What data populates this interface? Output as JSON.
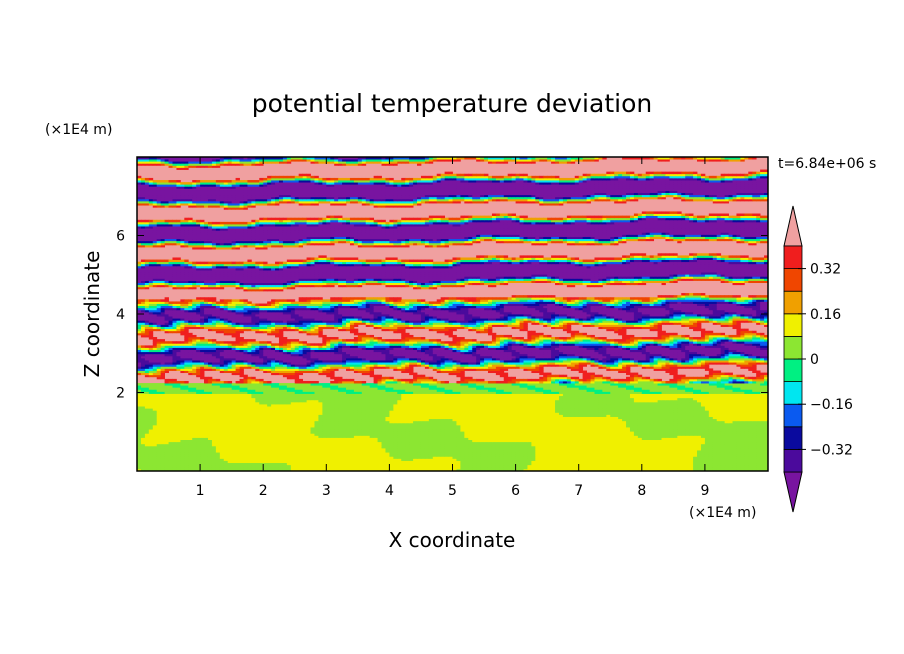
{
  "chart_data": {
    "type": "heatmap",
    "title": "potential temperature deviation",
    "xlabel": "X coordinate",
    "ylabel": "Z coordinate",
    "x_unit": "(×1E4 m)",
    "y_unit": "(×1E4 m)",
    "time_label": "t=6.84e+06 s",
    "xlim": [
      0,
      10
    ],
    "ylim": [
      0,
      8
    ],
    "x_ticks": [
      1,
      2,
      3,
      4,
      5,
      6,
      7,
      8,
      9
    ],
    "y_ticks": [
      2,
      4,
      6
    ],
    "grid": false,
    "legend": "right",
    "colorbar": {
      "levels": [
        -0.4,
        -0.32,
        -0.24,
        -0.16,
        -0.08,
        0,
        0.08,
        0.16,
        0.24,
        0.32,
        0.4
      ],
      "tick_values": [
        0.32,
        0.16,
        0,
        -0.16,
        -0.32
      ],
      "tick_labels": [
        "0.32",
        "0.16",
        "0",
        "−0.16",
        "−0.32"
      ],
      "colors_bottom_to_top": [
        "#4b0a9c",
        "#0a0a9e",
        "#0a5af0",
        "#00e6f0",
        "#00f082",
        "#8ce632",
        "#f0f000",
        "#f0a000",
        "#f04600",
        "#f01e1e"
      ],
      "under_color": "#7814a0",
      "over_color": "#f0a0a0"
    }
  }
}
